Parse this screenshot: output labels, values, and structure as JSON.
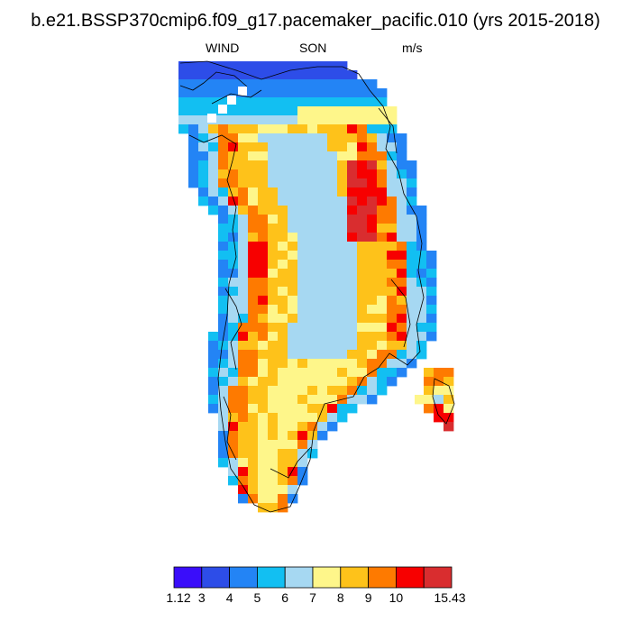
{
  "title": "b.e21.BSSP370cmip6.f09_g17.pacemaker_pacific.010 (yrs 2015-2018)",
  "subtitle": {
    "left": "WIND",
    "center": "SON",
    "right": "m/s"
  },
  "colorbar": {
    "colors": [
      "#3a0dfa",
      "#2d4de8",
      "#2384f5",
      "#12bff2",
      "#a6d8f2",
      "#fef68a",
      "#fec21a",
      "#fe7a00",
      "#f70000",
      "#d92d2f"
    ],
    "labels": [
      "1.12",
      "3",
      "4",
      "5",
      "6",
      "7",
      "8",
      "9",
      "10",
      "15.43"
    ]
  },
  "map": {
    "region": "Greenland",
    "variable": "WIND",
    "units": "m/s",
    "season": "SON",
    "pattern": "Low speeds (3-5 m/s) along coastal margins, high speeds (8-10+ m/s) along the ice sheet slopes, moderate (6-7 m/s) on the central interior plateau; local maxima above 10 m/s on the east slope."
  }
}
